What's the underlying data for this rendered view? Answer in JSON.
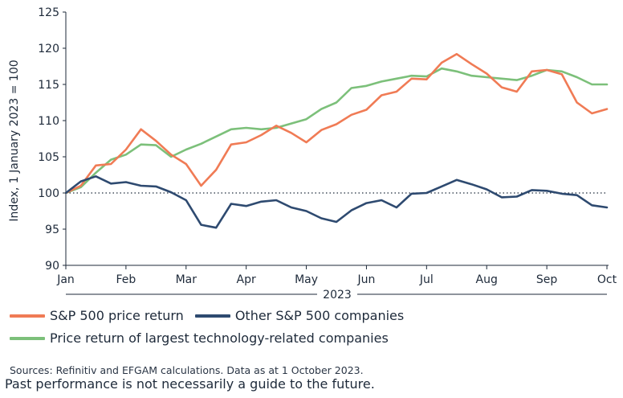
{
  "chart_data": {
    "type": "line",
    "title": "",
    "xlabel": "2023",
    "ylabel": "Index, 1 January 2023 = 100",
    "ylim": [
      90,
      125
    ],
    "yticks": [
      90,
      95,
      100,
      105,
      110,
      115,
      120,
      125
    ],
    "xlim": [
      0,
      9
    ],
    "x_ticks": [
      {
        "label": "Jan",
        "value": 0
      },
      {
        "label": "Feb",
        "value": 1
      },
      {
        "label": "Mar",
        "value": 2
      },
      {
        "label": "Apr",
        "value": 3
      },
      {
        "label": "May",
        "value": 4
      },
      {
        "label": "Jun",
        "value": 5
      },
      {
        "label": "Jul",
        "value": 6
      },
      {
        "label": "Aug",
        "value": 7
      },
      {
        "label": "Sep",
        "value": 8
      },
      {
        "label": "Oct",
        "value": 9
      }
    ],
    "reference_line": {
      "value": 100,
      "style": "dotted"
    },
    "x": [
      0,
      0.25,
      0.5,
      0.75,
      1.0,
      1.25,
      1.5,
      1.75,
      2.0,
      2.25,
      2.5,
      2.75,
      3.0,
      3.25,
      3.5,
      3.75,
      4.0,
      4.25,
      4.5,
      4.75,
      5.0,
      5.25,
      5.5,
      5.75,
      6.0,
      6.25,
      6.5,
      6.75,
      7.0,
      7.25,
      7.5,
      7.75,
      8.0,
      8.25,
      8.5,
      8.75,
      9.0
    ],
    "series": [
      {
        "name": "S&P 500 price return",
        "color": "#f07b55",
        "values": [
          100,
          101,
          103.8,
          104,
          106,
          108.8,
          107.2,
          105.3,
          104,
          101,
          103.2,
          106.7,
          107,
          108,
          109.3,
          108.3,
          107,
          108.7,
          109.5,
          110.8,
          111.5,
          113.5,
          114,
          115.8,
          115.7,
          118,
          119.2,
          117.8,
          116.5,
          114.6,
          114,
          116.8,
          117,
          116.4,
          112.5,
          111,
          111.6
        ]
      },
      {
        "name": "Other S&P 500 companies",
        "color": "#2e4a70",
        "values": [
          100,
          101.6,
          102.3,
          101.3,
          101.5,
          101,
          100.9,
          100.1,
          99,
          95.6,
          95.2,
          98.5,
          98.2,
          98.8,
          99,
          98,
          97.5,
          96.5,
          96,
          97.6,
          98.6,
          99,
          98,
          99.9,
          100,
          100.9,
          101.8,
          101.2,
          100.5,
          99.4,
          99.5,
          100.4,
          100.3,
          99.9,
          99.7,
          98.3,
          98
        ]
      },
      {
        "name": "Price return of largest technology-related companies",
        "color": "#7cc07a",
        "values": [
          100,
          100.8,
          102.8,
          104.6,
          105.3,
          106.7,
          106.6,
          105,
          106,
          106.8,
          107.8,
          108.8,
          109,
          108.8,
          109,
          109.6,
          110.2,
          111.6,
          112.5,
          114.5,
          114.8,
          115.4,
          115.8,
          116.2,
          116.1,
          117.2,
          116.8,
          116.2,
          116,
          115.8,
          115.6,
          116.2,
          117,
          116.8,
          116,
          115,
          115
        ]
      }
    ],
    "legend": "bottom"
  },
  "legend": [
    {
      "label": "S&P 500 price return",
      "color": "#f07b55"
    },
    {
      "label": "Other S&P 500 companies",
      "color": "#2e4a70"
    },
    {
      "label": "Price return of largest technology-related companies",
      "color": "#7cc07a"
    }
  ],
  "sources": "Sources: Refinitiv and EFGAM calculations. Data as at 1 October 2023.",
  "disclaimer": "Past performance is not necessarily a guide to the future."
}
